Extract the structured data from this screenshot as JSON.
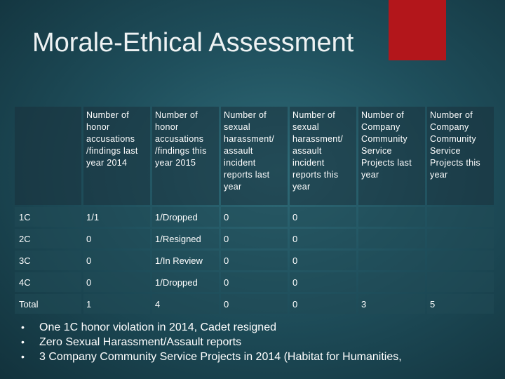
{
  "slide": {
    "title": "Morale-Ethical Assessment",
    "accent_color": "#b3161b"
  },
  "table": {
    "headers": [
      "",
      "Number of honor accusations /findings last year 2014",
      "Number of honor accusations /findings this year 2015",
      "Number of sexual harassment/ assault incident reports last year",
      "Number of sexual harassment/ assault incident reports this year",
      "Number of Company Community Service Projects last year",
      "Number of Company Community Service Projects this year"
    ],
    "rows": [
      [
        "1C",
        "1/1",
        "1/Dropped",
        "0",
        "0",
        "",
        ""
      ],
      [
        "2C",
        "0",
        "1/Resigned",
        "0",
        "0",
        "",
        ""
      ],
      [
        "3C",
        "0",
        "1/In Review",
        "0",
        "0",
        "",
        ""
      ],
      [
        "4C",
        "0",
        "1/Dropped",
        "0",
        "0",
        "",
        ""
      ],
      [
        "Total",
        "1",
        "4",
        "0",
        "0",
        "3",
        "5"
      ]
    ]
  },
  "bullets": [
    "One 1C honor violation in 2014, Cadet resigned",
    "Zero Sexual Harassment/Assault reports",
    "3 Company Community Service Projects in 2014 (Habitat for Humanities,"
  ]
}
